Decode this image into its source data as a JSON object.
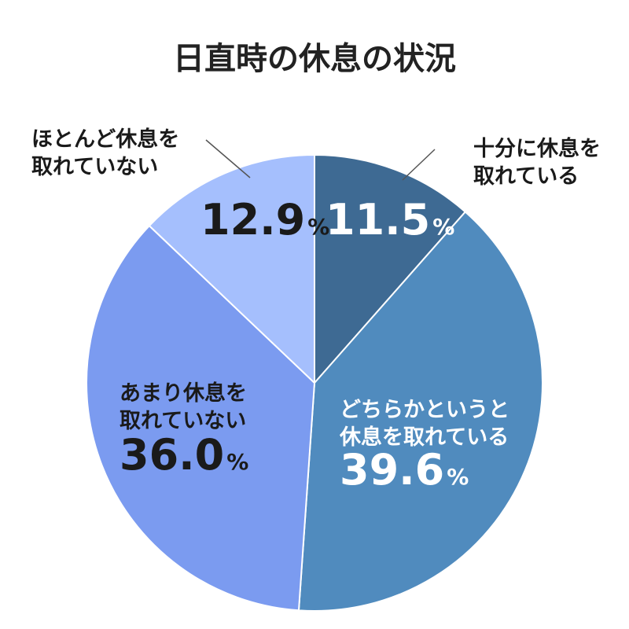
{
  "chart_data": {
    "type": "pie",
    "title": "日直時の休息の状況",
    "slices": [
      {
        "label_lines": [
          "十分に休息を",
          "取れている"
        ],
        "value": 11.5,
        "value_text": "11.5",
        "color": "#3e6a93",
        "text_color": "#ffffff"
      },
      {
        "label_lines": [
          "どちらかというと",
          "休息を取れている"
        ],
        "value": 39.6,
        "value_text": "39.6",
        "color": "#508bbe",
        "text_color": "#ffffff"
      },
      {
        "label_lines": [
          "あまり休息を",
          "取れていない"
        ],
        "value": 36.0,
        "value_text": "36.0",
        "color": "#7b9bf0",
        "text_color": "#1a1a1a"
      },
      {
        "label_lines": [
          "ほとんど休息を",
          "取れていない"
        ],
        "value": 12.9,
        "value_text": "12.9",
        "color": "#a5bffd",
        "text_color": "#1a1a1a"
      }
    ],
    "unit": "%"
  }
}
